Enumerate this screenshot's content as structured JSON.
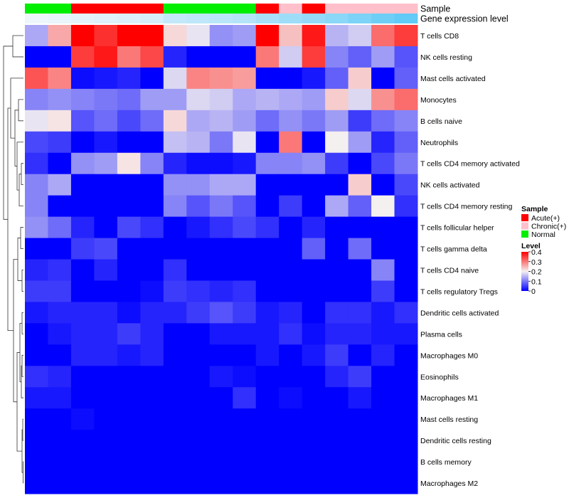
{
  "chart_data": {
    "type": "heatmap",
    "annotation_tracks": [
      {
        "label": "Sample",
        "key": "sample"
      },
      {
        "label": "Gene expression level",
        "key": "expr_level"
      }
    ],
    "columns": [
      {
        "sample": "Normal",
        "expr_level": 0.02
      },
      {
        "sample": "Normal",
        "expr_level": 0.04
      },
      {
        "sample": "Acute(+)",
        "expr_level": 0.06
      },
      {
        "sample": "Acute(+)",
        "expr_level": 0.08
      },
      {
        "sample": "Acute(+)",
        "expr_level": 0.1
      },
      {
        "sample": "Acute(+)",
        "expr_level": 0.12
      },
      {
        "sample": "Normal",
        "expr_level": 0.2
      },
      {
        "sample": "Normal",
        "expr_level": 0.22
      },
      {
        "sample": "Normal",
        "expr_level": 0.24
      },
      {
        "sample": "Normal",
        "expr_level": 0.26
      },
      {
        "sample": "Acute(+)",
        "expr_level": 0.32
      },
      {
        "sample": "Chronic(+)",
        "expr_level": 0.36
      },
      {
        "sample": "Acute(+)",
        "expr_level": 0.4
      },
      {
        "sample": "Chronic(+)",
        "expr_level": 0.44
      },
      {
        "sample": "Chronic(+)",
        "expr_level": 0.5
      },
      {
        "sample": "Chronic(+)",
        "expr_level": 0.56
      },
      {
        "sample": "Chronic(+)",
        "expr_level": 0.62
      }
    ],
    "rows": [
      "T cells CD8",
      "NK cells resting",
      "Mast cells activated",
      "Monocytes",
      "B cells naive",
      "Neutrophils",
      "T cells CD4 memory activated",
      "NK cells activated",
      "T cells CD4 memory resting",
      "T cells follicular helper",
      "T cells gamma delta",
      "T cells CD4 naive",
      "T cells regulatory  Tregs",
      "Dendritic cells activated",
      "Plasma cells",
      "Macrophages M0",
      "Eosinophils",
      "Macrophages M1",
      "Mast cells resting",
      "Dendritic cells resting",
      "B cells memory",
      "Macrophages M2"
    ],
    "values": [
      [
        0.14,
        0.26,
        0.4,
        0.36,
        0.4,
        0.4,
        0.22,
        0.19,
        0.12,
        0.13,
        0.4,
        0.24,
        0.38,
        0.15,
        0.17,
        0.31,
        0.35
      ],
      [
        0.0,
        0.0,
        0.35,
        0.38,
        0.3,
        0.34,
        0.03,
        0.0,
        0.0,
        0.0,
        0.3,
        0.17,
        0.35,
        0.11,
        0.08,
        0.13,
        0.07
      ],
      [
        0.33,
        0.29,
        0.01,
        0.02,
        0.03,
        0.0,
        0.18,
        0.29,
        0.28,
        0.27,
        0.0,
        0.0,
        0.02,
        0.08,
        0.23,
        0.0,
        0.08
      ],
      [
        0.11,
        0.12,
        0.11,
        0.1,
        0.09,
        0.13,
        0.13,
        0.18,
        0.17,
        0.14,
        0.15,
        0.14,
        0.13,
        0.23,
        0.18,
        0.28,
        0.31
      ],
      [
        0.19,
        0.21,
        0.07,
        0.09,
        0.06,
        0.09,
        0.22,
        0.14,
        0.15,
        0.13,
        0.09,
        0.12,
        0.1,
        0.13,
        0.05,
        0.09,
        0.11
      ],
      [
        0.06,
        0.05,
        0.0,
        0.02,
        0.0,
        0.0,
        0.16,
        0.15,
        0.1,
        0.19,
        0.0,
        0.3,
        0.0,
        0.2,
        0.13,
        0.03,
        0.08
      ],
      [
        0.04,
        0.0,
        0.12,
        0.13,
        0.21,
        0.11,
        0.03,
        0.01,
        0.01,
        0.02,
        0.11,
        0.11,
        0.12,
        0.05,
        0.0,
        0.06,
        0.1
      ],
      [
        0.11,
        0.14,
        0.0,
        0.0,
        0.0,
        0.0,
        0.12,
        0.12,
        0.14,
        0.14,
        0.0,
        0.0,
        0.0,
        0.0,
        0.23,
        0.0,
        0.06
      ],
      [
        0.11,
        0.0,
        0.0,
        0.0,
        0.0,
        0.0,
        0.11,
        0.07,
        0.1,
        0.07,
        0.0,
        0.05,
        0.0,
        0.14,
        0.08,
        0.2,
        0.04
      ],
      [
        0.12,
        0.09,
        0.03,
        0.0,
        0.06,
        0.04,
        0.0,
        0.02,
        0.04,
        0.06,
        0.04,
        0.0,
        0.03,
        0.0,
        0.0,
        0.0,
        0.0
      ],
      [
        0.0,
        0.0,
        0.05,
        0.06,
        0.0,
        0.0,
        0.0,
        0.0,
        0.0,
        0.0,
        0.0,
        0.0,
        0.08,
        0.0,
        0.09,
        0.0,
        0.0
      ],
      [
        0.03,
        0.04,
        0.0,
        0.03,
        0.0,
        0.0,
        0.04,
        0.0,
        0.0,
        0.0,
        0.0,
        0.0,
        0.0,
        0.0,
        0.0,
        0.11,
        0.0
      ],
      [
        0.05,
        0.05,
        0.0,
        0.0,
        0.0,
        0.01,
        0.05,
        0.04,
        0.03,
        0.04,
        0.0,
        0.0,
        0.0,
        0.0,
        0.0,
        0.05,
        0.0
      ],
      [
        0.02,
        0.03,
        0.03,
        0.03,
        0.01,
        0.03,
        0.03,
        0.05,
        0.07,
        0.05,
        0.02,
        0.03,
        0.0,
        0.04,
        0.04,
        0.02,
        0.04
      ],
      [
        0.0,
        0.02,
        0.03,
        0.03,
        0.05,
        0.03,
        0.0,
        0.0,
        0.02,
        0.02,
        0.02,
        0.04,
        0.01,
        0.03,
        0.03,
        0.02,
        0.02
      ],
      [
        0.0,
        0.0,
        0.03,
        0.03,
        0.02,
        0.03,
        0.0,
        0.0,
        0.0,
        0.0,
        0.02,
        0.0,
        0.02,
        0.05,
        0.0,
        0.03,
        0.0
      ],
      [
        0.04,
        0.03,
        0.0,
        0.0,
        0.0,
        0.0,
        0.0,
        0.0,
        0.02,
        0.01,
        0.0,
        0.0,
        0.0,
        0.03,
        0.05,
        0.0,
        0.0
      ],
      [
        0.02,
        0.02,
        0.0,
        0.0,
        0.0,
        0.0,
        0.0,
        0.0,
        0.0,
        0.04,
        0.0,
        0.01,
        0.0,
        0.0,
        0.02,
        0.0,
        0.0
      ],
      [
        0.0,
        0.0,
        0.01,
        0.0,
        0.0,
        0.0,
        0.0,
        0.0,
        0.0,
        0.0,
        0.0,
        0.0,
        0.0,
        0.0,
        0.0,
        0.0,
        0.0
      ],
      [
        0.0,
        0.0,
        0.0,
        0.0,
        0.0,
        0.0,
        0.0,
        0.0,
        0.0,
        0.0,
        0.0,
        0.0,
        0.0,
        0.0,
        0.0,
        0.0,
        0.0
      ],
      [
        0.0,
        0.0,
        0.0,
        0.0,
        0.0,
        0.0,
        0.0,
        0.0,
        0.0,
        0.0,
        0.0,
        0.0,
        0.0,
        0.0,
        0.0,
        0.0,
        0.0
      ],
      [
        0.0,
        0.0,
        0.0,
        0.0,
        0.0,
        0.0,
        0.0,
        0.0,
        0.0,
        0.0,
        0.0,
        0.0,
        0.0,
        0.0,
        0.0,
        0.0,
        0.0
      ]
    ],
    "color_scale": {
      "min": 0,
      "mid": 0.2,
      "max": 0.4,
      "low_color": "#0000ff",
      "mid_color": "#f5f0f0",
      "high_color": "#ff0000"
    },
    "expr_level_scale": {
      "min": 0,
      "max": 0.7,
      "low_color": "#f2f7fb",
      "high_color": "#4ec4f5"
    },
    "legend": {
      "sample_title": "Sample",
      "sample_entries": [
        {
          "label": "Acute(+)",
          "color": "#ff0000"
        },
        {
          "label": "Chronic(+)",
          "color": "#ffc0cb"
        },
        {
          "label": "Normal",
          "color": "#00ee00"
        }
      ],
      "level_title": "Level",
      "level_ticks": [
        "0.4",
        "0.3",
        "0.2",
        "0.1",
        "0"
      ],
      "level_tick_values": [
        0.4,
        0.3,
        0.2,
        0.1,
        0
      ]
    },
    "dendrogram": "row clustering (left)",
    "legend_position": "right"
  }
}
